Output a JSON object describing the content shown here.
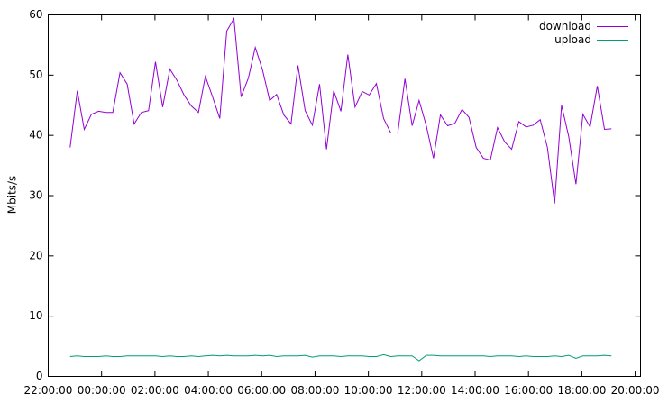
{
  "chart_data": {
    "type": "line",
    "y_label": "Mbits/s",
    "x": [
      0.82,
      1.09,
      1.35,
      1.62,
      1.89,
      2.16,
      2.42,
      2.69,
      2.96,
      3.22,
      3.49,
      3.76,
      4.02,
      4.29,
      4.56,
      4.83,
      5.09,
      5.36,
      5.63,
      5.89,
      6.16,
      6.43,
      6.69,
      6.96,
      7.23,
      7.5,
      7.76,
      8.03,
      8.3,
      8.56,
      8.83,
      9.1,
      9.36,
      9.63,
      9.9,
      10.17,
      10.43,
      10.7,
      10.97,
      11.23,
      11.5,
      11.77,
      12.03,
      12.3,
      12.57,
      12.84,
      13.1,
      13.37,
      13.64,
      13.9,
      14.17,
      14.44,
      14.7,
      14.97,
      15.24,
      15.51,
      15.77,
      16.04,
      16.31,
      16.57,
      16.84,
      17.11,
      17.37,
      17.64,
      17.91,
      18.18,
      18.44,
      18.71,
      18.98,
      19.24,
      19.51,
      19.78,
      20.04,
      20.31,
      20.58,
      20.85,
      21.11
    ],
    "series": [
      {
        "name": "download",
        "color": "#9400d3",
        "values": [
          38,
          47.4,
          41,
          43.5,
          44,
          43.8,
          43.8,
          50.4,
          48.5,
          41.9,
          43.8,
          44.1,
          52.2,
          44.7,
          51,
          49.1,
          46.7,
          44.9,
          43.8,
          49.8,
          46.4,
          42.8,
          57.3,
          59.4,
          46.4,
          49.5,
          54.6,
          50.9,
          45.8,
          46.8,
          43.4,
          41.9,
          51.6,
          44.1,
          41.7,
          48.5,
          37.7,
          47.4,
          44,
          53.4,
          44.7,
          47.3,
          46.7,
          48.6,
          42.8,
          40.4,
          40.4,
          49.4,
          41.6,
          45.8,
          41.6,
          36.2,
          43.4,
          41.6,
          42,
          44.3,
          43,
          38,
          36.2,
          35.9,
          41.3,
          38.9,
          37.7,
          42.3,
          41.4,
          41.7,
          42.6,
          38,
          28.7,
          45,
          39.8,
          31.9,
          43.5,
          41.4,
          48.2,
          41,
          41.1
        ]
      },
      {
        "name": "upload",
        "color": "#009e73",
        "values": [
          3.3,
          3.4,
          3.3,
          3.3,
          3.3,
          3.4,
          3.3,
          3.3,
          3.4,
          3.4,
          3.4,
          3.4,
          3.4,
          3.3,
          3.4,
          3.3,
          3.3,
          3.4,
          3.3,
          3.4,
          3.5,
          3.4,
          3.5,
          3.4,
          3.4,
          3.4,
          3.5,
          3.4,
          3.5,
          3.3,
          3.4,
          3.4,
          3.4,
          3.5,
          3.2,
          3.4,
          3.4,
          3.4,
          3.3,
          3.4,
          3.4,
          3.4,
          3.3,
          3.3,
          3.6,
          3.3,
          3.4,
          3.4,
          3.4,
          2.6,
          3.5,
          3.5,
          3.4,
          3.4,
          3.4,
          3.4,
          3.4,
          3.4,
          3.4,
          3.3,
          3.4,
          3.4,
          3.4,
          3.3,
          3.4,
          3.3,
          3.3,
          3.3,
          3.4,
          3.3,
          3.5,
          3.0,
          3.4,
          3.4,
          3.4,
          3.5,
          3.4
        ]
      }
    ],
    "xlim": [
      0,
      22.2
    ],
    "xticks": [
      {
        "value": 0,
        "label": "22:00:00"
      },
      {
        "value": 2,
        "label": "00:00:00"
      },
      {
        "value": 4,
        "label": "02:00:00"
      },
      {
        "value": 6,
        "label": "04:00:00"
      },
      {
        "value": 8,
        "label": "06:00:00"
      },
      {
        "value": 10,
        "label": "08:00:00"
      },
      {
        "value": 12,
        "label": "10:00:00"
      },
      {
        "value": 14,
        "label": "12:00:00"
      },
      {
        "value": 16,
        "label": "14:00:00"
      },
      {
        "value": 18,
        "label": "16:00:00"
      },
      {
        "value": 20,
        "label": "18:00:00"
      },
      {
        "value": 22,
        "label": "20:00:00"
      }
    ],
    "ylim": [
      0,
      60
    ],
    "yticks": [
      0,
      10,
      20,
      30,
      40,
      50,
      60
    ],
    "grid": false,
    "legend": "top-right"
  }
}
